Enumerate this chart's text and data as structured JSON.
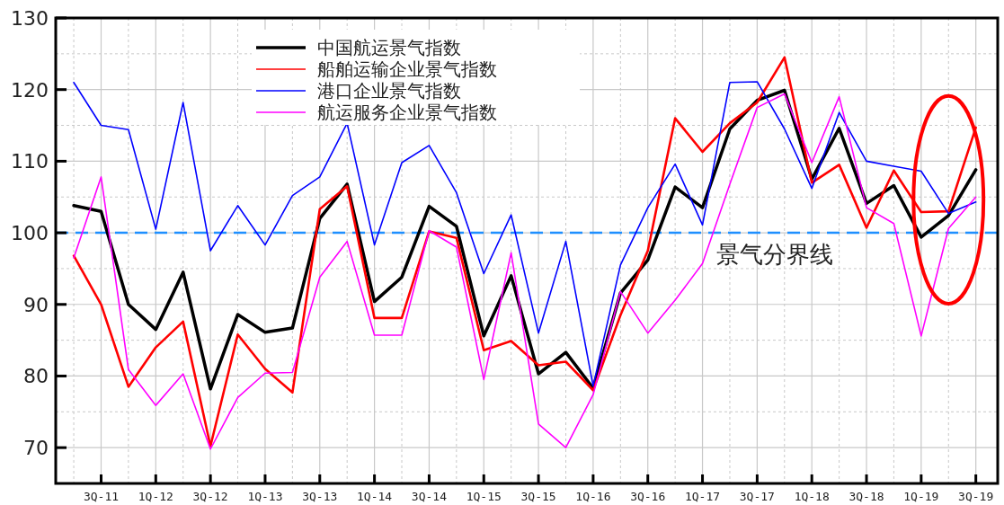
{
  "chart_data": {
    "type": "line",
    "categories": [
      null,
      "3Q-11",
      null,
      "1Q-12",
      null,
      "3Q-12",
      null,
      "1Q-13",
      null,
      "3Q-13",
      null,
      "1Q-14",
      null,
      "3Q-14",
      null,
      "1Q-15",
      null,
      "3Q-15",
      null,
      "1Q-16",
      null,
      "3Q-16",
      null,
      "1Q-17",
      null,
      "3Q-17",
      null,
      "1Q-18",
      null,
      "3Q-18",
      null,
      "1Q-19",
      null,
      "3Q-19"
    ],
    "series": [
      {
        "name": "中国航运景气指数",
        "color": "#000000",
        "values": [
          103.8,
          103,
          90,
          86.5,
          94.5,
          78.2,
          88.6,
          86.1,
          86.7,
          102,
          106.8,
          90.4,
          93.8,
          103.7,
          100.9,
          85.6,
          94,
          80.3,
          83.3,
          78.3,
          91.6,
          96.2,
          106.4,
          103.5,
          114.5,
          118.5,
          119.9,
          107.5,
          114.6,
          104.1,
          106.6,
          99.4,
          102.4,
          108.8
        ]
      },
      {
        "name": "船舶运输企业景气指数",
        "color": "#ff0000",
        "values": [
          96.8,
          90,
          78.5,
          84,
          87.6,
          70.2,
          85.8,
          81,
          77.7,
          103.3,
          106.5,
          88.1,
          88.1,
          100.2,
          99.3,
          83.6,
          84.9,
          81.5,
          82,
          78,
          88.5,
          97.5,
          116,
          111.3,
          115.3,
          118.2,
          124.5,
          107,
          109.5,
          100.7,
          108.7,
          102.9,
          103,
          114.7
        ]
      },
      {
        "name": "港口企业景气指数",
        "color": "#0000ff",
        "values": [
          121,
          115,
          114.4,
          100.5,
          118.2,
          97.5,
          103.8,
          98.3,
          105.2,
          107.8,
          115.3,
          98.3,
          109.8,
          112.2,
          105.6,
          94.3,
          102.5,
          86,
          98.8,
          78.6,
          95.5,
          103.5,
          109.6,
          101.1,
          121,
          121.1,
          114.5,
          106.2,
          116.8,
          110,
          109.3,
          108.6,
          102.7,
          104.3
        ]
      },
      {
        "name": "航运服务企业景气指数",
        "color": "#ff00ff",
        "values": [
          96.5,
          107.8,
          80.9,
          75.9,
          80.3,
          69.8,
          77,
          80.4,
          80.5,
          93.8,
          98.8,
          85.7,
          85.7,
          100.3,
          98,
          79.5,
          97.2,
          73.3,
          70,
          77.4,
          91.8,
          86,
          90.6,
          95.7,
          106.8,
          117.5,
          119.4,
          109.8,
          119,
          103.5,
          101.3,
          85.6,
          100.6,
          105
        ]
      }
    ],
    "ylim": [
      65,
      130
    ],
    "yticks": [
      70,
      80,
      90,
      100,
      110,
      120,
      130
    ],
    "grid": true,
    "legend": "top",
    "marker": "none",
    "line_style": "solid",
    "ref_lines": [
      {
        "axis": "y",
        "value": 100,
        "label": "景气分界线",
        "color": "#1e8fff",
        "line_style": "dashed"
      }
    ]
  }
}
